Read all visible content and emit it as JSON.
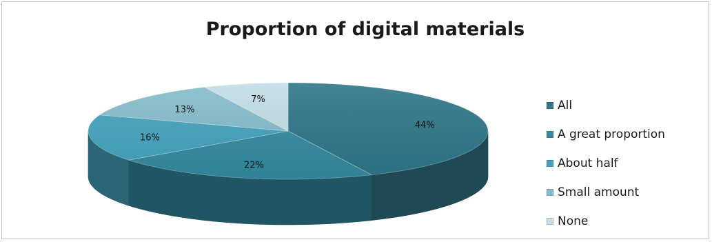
{
  "chart_data": {
    "type": "pie",
    "title": "Proportion of digital materials",
    "categories": [
      "All",
      "A great proportion",
      "About half",
      "Small amount",
      "None"
    ],
    "values": [
      44,
      22,
      16,
      13,
      7
    ],
    "data_labels": [
      "44%",
      "22%",
      "16%",
      "13%",
      "7%"
    ],
    "colors": [
      "#2f7789",
      "#348ba1",
      "#45a3be",
      "#85bccb",
      "#c3dde5"
    ],
    "legend_placement": "right",
    "style": "3d"
  }
}
